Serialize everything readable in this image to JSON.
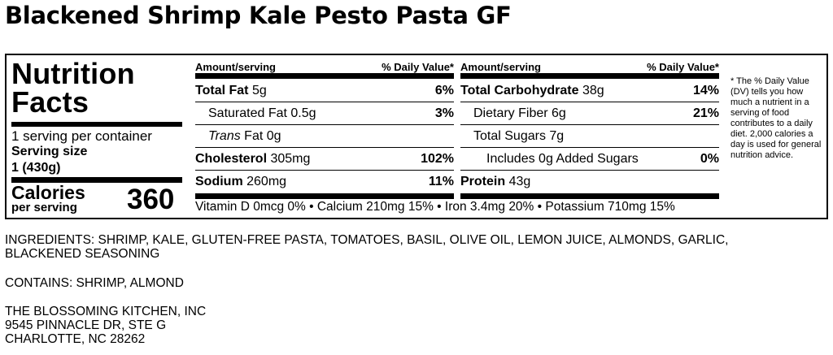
{
  "title": "Blackened Shrimp Kale Pesto Pasta GF",
  "label": {
    "heading_line1": "Nutrition",
    "heading_line2": "Facts",
    "servings_per_container": "1 serving per container",
    "serving_size_label": "Serving size",
    "serving_size_value": "1 (430g)",
    "calories_label": "Calories",
    "calories_sub": "per serving",
    "calories_value": "360",
    "column_header_amount": "Amount/serving",
    "column_header_dv": "% Daily Value*",
    "left_rows": [
      {
        "name": "Total Fat",
        "amount": "5g",
        "dv": "6%"
      },
      {
        "name": "Saturated Fat",
        "amount": "0.5g",
        "dv": "3%"
      },
      {
        "name_italic": "Trans",
        "name": " Fat",
        "amount": "0g",
        "dv": ""
      },
      {
        "name": "Cholesterol",
        "amount": "305mg",
        "dv": "102%"
      },
      {
        "name": "Sodium",
        "amount": "260mg",
        "dv": "11%"
      }
    ],
    "right_rows": [
      {
        "name": "Total Carbohydrate",
        "amount": "38g",
        "dv": "14%"
      },
      {
        "name": "Dietary Fiber",
        "amount": "6g",
        "dv": "21%"
      },
      {
        "name": "Total Sugars",
        "amount": "7g",
        "dv": ""
      },
      {
        "name": "Includes 0g Added Sugars",
        "amount": "",
        "dv": "0%"
      },
      {
        "name": "Protein",
        "amount": "43g",
        "dv": ""
      }
    ],
    "vitamins": "Vitamin D 0mcg 0% • Calcium 210mg 15% • Iron 3.4mg 20% • Potassium 710mg 15%",
    "footnote": "* The % Daily Value (DV) tells you how much a nutrient in a serving of food contributes to a daily diet. 2,000 calories a day is used for general nutrition advice."
  },
  "ingredients": {
    "line1": "INGREDIENTS: SHRIMP, KALE, GLUTEN-FREE PASTA, TOMATOES, BASIL, OLIVE OIL, LEMON JUICE, ALMONDS, GARLIC,",
    "line2": "BLACKENED SEASONING"
  },
  "contains": "CONTAINS: SHRIMP, ALMOND",
  "address": {
    "line1": "THE BLOSSOMING KITCHEN, INC",
    "line2": "9545 PINNACLE DR, STE G",
    "line3": "CHARLOTTE, NC 28262"
  }
}
